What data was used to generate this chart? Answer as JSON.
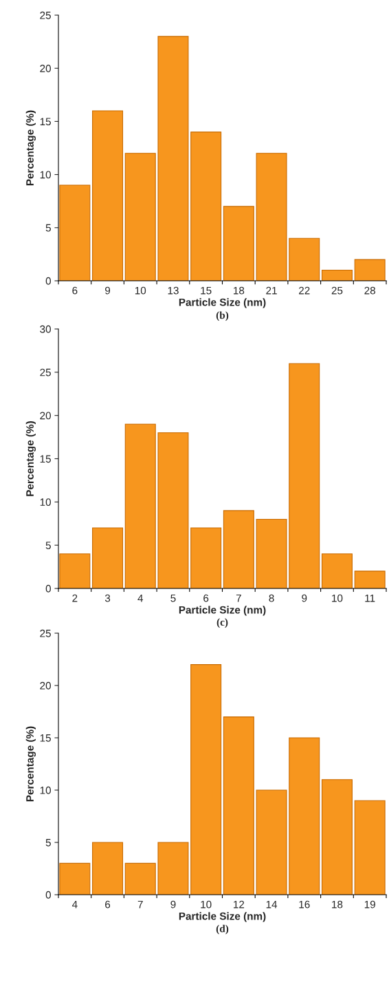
{
  "chart_data": [
    {
      "type": "bar",
      "xlabel": "Particle Size (nm)",
      "ylabel": "Percentage (%)",
      "annotations": [
        "(b)"
      ],
      "categories": [
        "6",
        "9",
        "10",
        "13",
        "15",
        "18",
        "21",
        "22",
        "25",
        "28"
      ],
      "values": [
        9,
        16,
        12,
        23,
        14,
        7,
        12,
        4,
        1,
        2
      ],
      "color": "#f7961e",
      "ylim": [
        0,
        25
      ],
      "yticks": [
        0,
        5,
        10,
        15,
        20,
        25
      ],
      "grid": false,
      "legend": false
    },
    {
      "type": "bar",
      "xlabel": "Particle Size (nm)",
      "ylabel": "Percentage (%)",
      "annotations": [
        "(c)"
      ],
      "categories": [
        "2",
        "3",
        "4",
        "5",
        "6",
        "7",
        "8",
        "9",
        "10",
        "11"
      ],
      "values": [
        4,
        7,
        19,
        18,
        7,
        9,
        8,
        26,
        4,
        2
      ],
      "color": "#f7961e",
      "ylim": [
        0,
        30
      ],
      "yticks": [
        0,
        5,
        10,
        15,
        20,
        25,
        30
      ],
      "grid": false,
      "legend": false
    },
    {
      "type": "bar",
      "xlabel": "Particle Size (nm)",
      "ylabel": "Percentage (%)",
      "annotations": [
        "(d)"
      ],
      "categories": [
        "4",
        "6",
        "7",
        "9",
        "10",
        "12",
        "14",
        "16",
        "18",
        "19"
      ],
      "values": [
        3,
        5,
        3,
        5,
        22,
        17,
        10,
        15,
        11,
        9
      ],
      "color": "#f7961e",
      "ylim": [
        0,
        25
      ],
      "yticks": [
        0,
        5,
        10,
        15,
        20,
        25
      ],
      "grid": false,
      "legend": false
    }
  ]
}
